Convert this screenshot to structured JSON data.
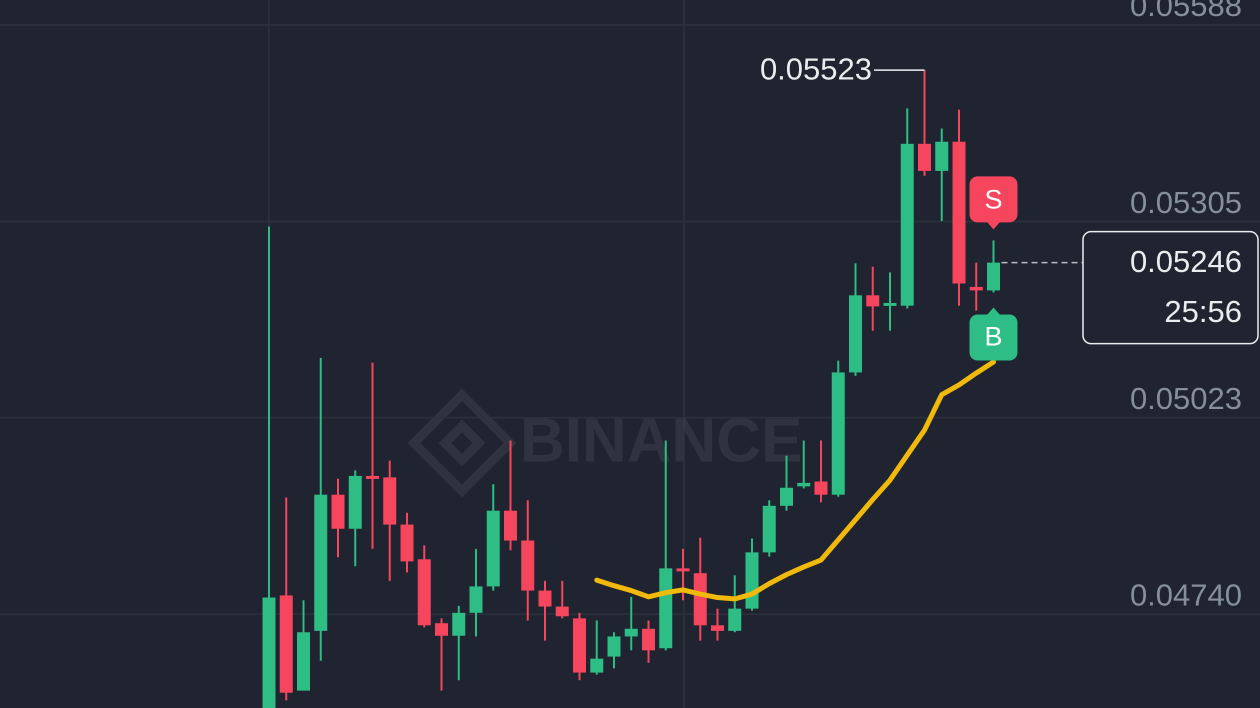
{
  "chart_data": {
    "type": "candlestick",
    "watermark": "BINANCE",
    "up_color": "#2ebd85",
    "down_color": "#f6465d",
    "ylim": [
      0.04605,
      0.05624
    ],
    "yticks": [
      0.05588,
      0.05305,
      0.05023,
      {
        "value": 0.0474,
        "label": "0.04740"
      }
    ],
    "grid": true,
    "candles": {
      "open": [
        0.04604,
        0.04767,
        0.0463,
        0.04716,
        0.04912,
        0.04863,
        0.04939,
        0.04937,
        0.04869,
        0.04819,
        0.04727,
        0.04709,
        0.04742,
        0.0478,
        0.04889,
        0.04846,
        0.04774,
        0.04751,
        0.04734,
        0.04656,
        0.04679,
        0.04708,
        0.04719,
        0.04691,
        0.04806,
        0.04799,
        0.04724,
        0.04716,
        0.04748,
        0.04829,
        0.04896,
        0.04924,
        0.04931,
        0.04912,
        0.05088,
        0.05199,
        0.05186,
        0.05184,
        0.05417,
        0.05378,
        0.0542,
        0.05211,
        0.05206
      ],
      "high": [
        0.05298,
        0.04908,
        0.0476,
        0.05109,
        0.04935,
        0.04947,
        0.05102,
        0.04961,
        0.04886,
        0.04839,
        0.04734,
        0.04752,
        0.04834,
        0.04927,
        0.0499,
        0.04904,
        0.04788,
        0.04788,
        0.04742,
        0.04731,
        0.04714,
        0.04765,
        0.04731,
        0.0499,
        0.04834,
        0.0485,
        0.04748,
        0.04796,
        0.04849,
        0.04904,
        0.04968,
        0.0499,
        0.0499,
        0.05105,
        0.05245,
        0.0524,
        0.05232,
        0.05468,
        0.05523,
        0.05439,
        0.05466,
        0.05246,
        0.05278
      ],
      "low": [
        0.04604,
        0.04616,
        0.0463,
        0.04673,
        0.04822,
        0.04809,
        0.04834,
        0.04788,
        0.048,
        0.04721,
        0.0463,
        0.04645,
        0.04708,
        0.04774,
        0.04832,
        0.04731,
        0.04702,
        0.04734,
        0.04645,
        0.04653,
        0.04662,
        0.04688,
        0.0467,
        0.04688,
        0.0476,
        0.04702,
        0.04702,
        0.04714,
        0.04745,
        0.04823,
        0.04889,
        0.04921,
        0.04901,
        0.04909,
        0.05083,
        0.05148,
        0.05148,
        0.0518,
        0.05371,
        0.05306,
        0.05184,
        0.05177,
        0.05203
      ],
      "close": [
        0.04764,
        0.04627,
        0.04714,
        0.04912,
        0.04863,
        0.04939,
        0.04937,
        0.04869,
        0.04816,
        0.04724,
        0.04709,
        0.04742,
        0.0478,
        0.04889,
        0.04846,
        0.04774,
        0.04751,
        0.04737,
        0.04656,
        0.04676,
        0.04708,
        0.04719,
        0.04688,
        0.04806,
        0.04804,
        0.04724,
        0.04716,
        0.04748,
        0.04829,
        0.04896,
        0.04922,
        0.04929,
        0.04912,
        0.05088,
        0.05199,
        0.05183,
        0.05188,
        0.05417,
        0.05378,
        0.0542,
        0.05216,
        0.05206,
        0.05246
      ]
    },
    "ma": {
      "color": "#f0b90b",
      "values": [
        null,
        null,
        null,
        null,
        null,
        null,
        null,
        null,
        null,
        null,
        null,
        null,
        null,
        null,
        null,
        null,
        null,
        null,
        null,
        0.04789,
        0.04781,
        0.04774,
        0.04765,
        0.04771,
        0.04775,
        0.04769,
        0.04764,
        0.04762,
        0.04769,
        0.04784,
        0.04797,
        0.04808,
        0.04818,
        0.04847,
        0.04876,
        0.04905,
        0.04933,
        0.04969,
        0.05005,
        0.05056,
        0.0507,
        0.05087,
        0.05103
      ]
    },
    "countdown": "25:56",
    "markers": [
      {
        "label": "S"
      },
      {
        "label": "B"
      }
    ]
  }
}
